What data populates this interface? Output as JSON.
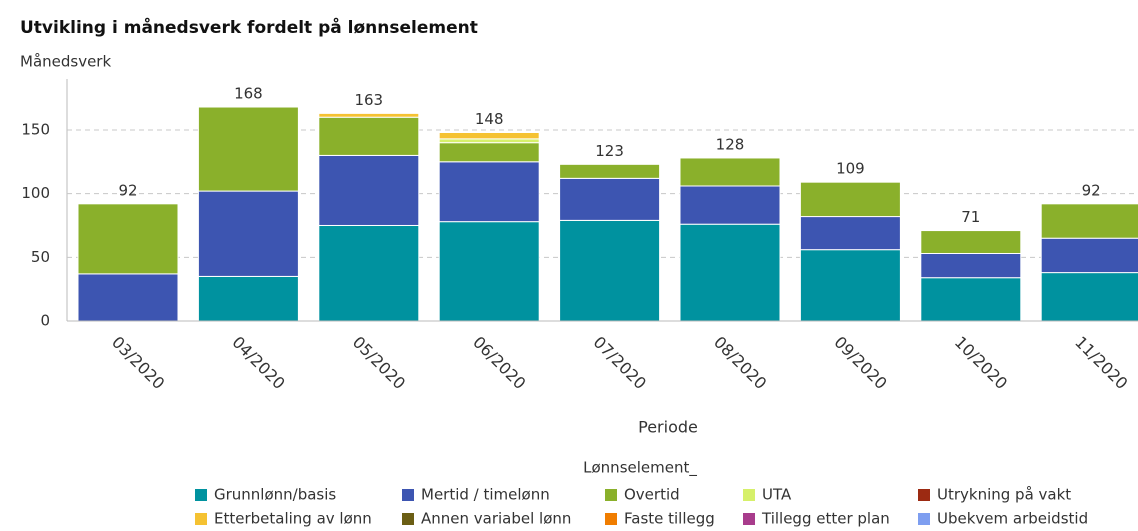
{
  "chart_data": {
    "type": "stacked_bar",
    "title": "Utvikling i månedsverk fordelt på lønnselement",
    "y_label": "Månedsverk",
    "x_label": "Periode",
    "legend_title": "Lønnselement_",
    "categories": [
      "03/2020",
      "04/2020",
      "05/2020",
      "06/2020",
      "07/2020",
      "08/2020",
      "09/2020",
      "10/2020",
      "11/2020"
    ],
    "totals": [
      92,
      168,
      163,
      148,
      123,
      128,
      109,
      71,
      92
    ],
    "series": [
      {
        "name": "Grunnlønn/basis",
        "color": "#00929f",
        "values": [
          0,
          35,
          75,
          78,
          79,
          76,
          56,
          34,
          38
        ]
      },
      {
        "name": "Mertid / timelønn",
        "color": "#3d55b1",
        "values": [
          37,
          67,
          55,
          47,
          33,
          30,
          26,
          19,
          27
        ]
      },
      {
        "name": "Overtid",
        "color": "#8ab02b",
        "values": [
          55,
          66,
          30,
          15,
          11,
          22,
          27,
          18,
          27
        ]
      },
      {
        "name": "UTA",
        "color": "#d6f06a",
        "values": [
          0,
          0,
          0,
          3,
          0,
          0,
          0,
          0,
          0
        ]
      },
      {
        "name": "Utrykning på vakt",
        "color": "#9c2a12",
        "values": [
          0,
          0,
          0,
          0,
          0,
          0,
          0,
          0,
          0
        ]
      },
      {
        "name": "Etterbetaling av lønn",
        "color": "#f5c232",
        "values": [
          0,
          0,
          3,
          5,
          0,
          0,
          0,
          0,
          0
        ]
      },
      {
        "name": "Annen variabel lønn",
        "color": "#6b5e14",
        "values": [
          0,
          0,
          0,
          0,
          0,
          0,
          0,
          0,
          0
        ]
      },
      {
        "name": "Faste tillegg",
        "color": "#f07d00",
        "values": [
          0,
          0,
          0,
          0,
          0,
          0,
          0,
          0,
          0
        ]
      },
      {
        "name": "Tillegg etter plan",
        "color": "#a83c8c",
        "values": [
          0,
          0,
          0,
          0,
          0,
          0,
          0,
          0,
          0
        ]
      },
      {
        "name": "Ubekvem arbeidstid",
        "color": "#7e9ef0",
        "values": [
          0,
          0,
          0,
          0,
          0,
          0,
          0,
          0,
          0
        ]
      }
    ],
    "ylim": [
      0,
      190
    ],
    "yticks": [
      0,
      50,
      100,
      150
    ],
    "grid": true
  }
}
